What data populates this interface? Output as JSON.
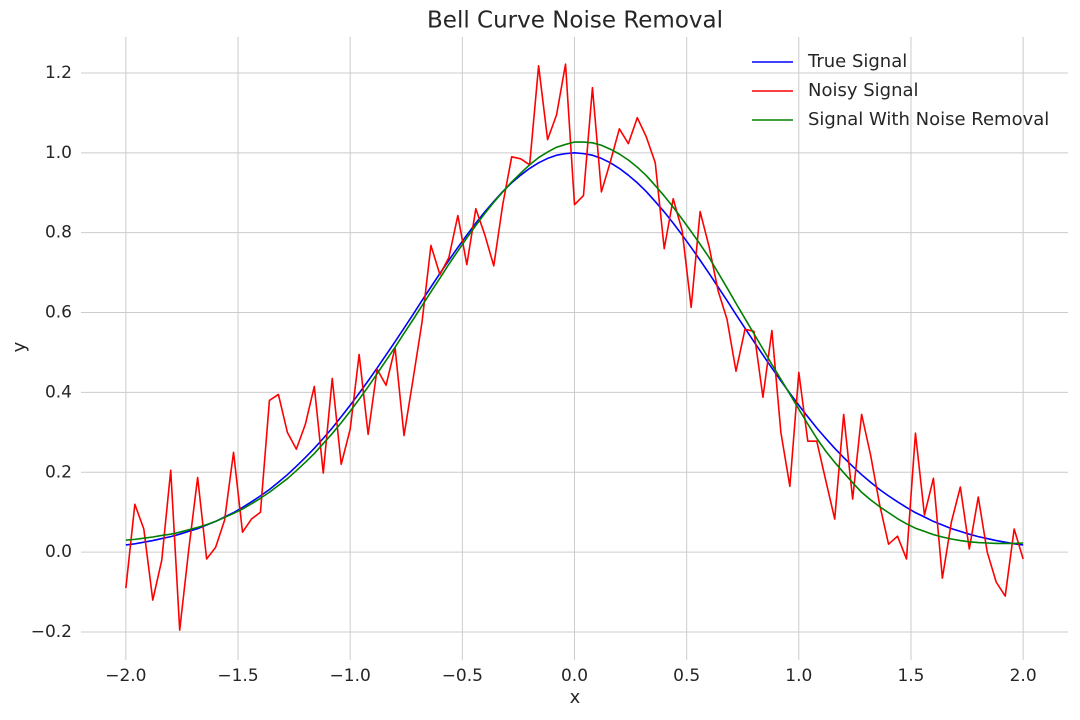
{
  "chart_data": {
    "type": "line",
    "title": "Bell Curve Noise Removal",
    "x_label": "x",
    "y_label": "y",
    "x": [
      -2,
      -1.96,
      -1.92,
      -1.88,
      -1.84,
      -1.8,
      -1.76,
      -1.72,
      -1.68,
      -1.64,
      -1.6,
      -1.56,
      -1.52,
      -1.48,
      -1.44,
      -1.4,
      -1.36,
      -1.32,
      -1.28,
      -1.24,
      -1.2,
      -1.16,
      -1.12,
      -1.08,
      -1.04,
      -1,
      -0.96,
      -0.92,
      -0.88,
      -0.84,
      -0.8,
      -0.76,
      -0.72,
      -0.68,
      -0.64,
      -0.6,
      -0.56,
      -0.52,
      -0.48,
      -0.44,
      -0.4,
      -0.36,
      -0.32,
      -0.28,
      -0.24,
      -0.2,
      -0.16,
      -0.12,
      -0.08,
      -0.04,
      0,
      0.04,
      0.08,
      0.12,
      0.16,
      0.2,
      0.24,
      0.28,
      0.32,
      0.36,
      0.4,
      0.44,
      0.48,
      0.52,
      0.56,
      0.6,
      0.64,
      0.68,
      0.72,
      0.76,
      0.8,
      0.84,
      0.88,
      0.92,
      0.96,
      1,
      1.04,
      1.08,
      1.12,
      1.16,
      1.2,
      1.24,
      1.28,
      1.32,
      1.36,
      1.4,
      1.44,
      1.48,
      1.52,
      1.56,
      1.6,
      1.64,
      1.68,
      1.72,
      1.76,
      1.8,
      1.84,
      1.88,
      1.92,
      1.96,
      2
    ],
    "series": [
      {
        "name": "True Signal",
        "color": "#0000ff",
        "values": [
          0.018,
          0.021,
          0.025,
          0.029,
          0.034,
          0.039,
          0.045,
          0.052,
          0.059,
          0.068,
          0.077,
          0.088,
          0.099,
          0.112,
          0.126,
          0.141,
          0.157,
          0.175,
          0.194,
          0.215,
          0.237,
          0.26,
          0.285,
          0.311,
          0.339,
          0.368,
          0.398,
          0.429,
          0.461,
          0.494,
          0.527,
          0.561,
          0.595,
          0.63,
          0.664,
          0.698,
          0.731,
          0.763,
          0.794,
          0.824,
          0.852,
          0.878,
          0.903,
          0.925,
          0.944,
          0.961,
          0.975,
          0.986,
          0.994,
          0.998,
          1,
          0.998,
          0.994,
          0.986,
          0.975,
          0.961,
          0.944,
          0.925,
          0.903,
          0.878,
          0.852,
          0.824,
          0.794,
          0.763,
          0.731,
          0.698,
          0.664,
          0.63,
          0.595,
          0.561,
          0.527,
          0.494,
          0.461,
          0.429,
          0.398,
          0.368,
          0.339,
          0.311,
          0.285,
          0.26,
          0.237,
          0.215,
          0.194,
          0.175,
          0.157,
          0.141,
          0.126,
          0.112,
          0.099,
          0.088,
          0.077,
          0.068,
          0.059,
          0.052,
          0.045,
          0.039,
          0.034,
          0.029,
          0.025,
          0.021,
          0.018
        ]
      },
      {
        "name": "Noisy Signal",
        "color": "#ff0000",
        "values": [
          -0.09,
          0.12,
          0.058,
          -0.12,
          -0.02,
          0.205,
          -0.195,
          0.005,
          0.187,
          -0.017,
          0.012,
          0.08,
          0.25,
          0.05,
          0.083,
          0.1,
          0.38,
          0.395,
          0.3,
          0.258,
          0.32,
          0.415,
          0.198,
          0.435,
          0.22,
          0.308,
          0.495,
          0.295,
          0.458,
          0.418,
          0.512,
          0.292,
          0.432,
          0.575,
          0.768,
          0.695,
          0.738,
          0.843,
          0.72,
          0.86,
          0.795,
          0.717,
          0.87,
          0.99,
          0.985,
          0.97,
          1.218,
          1.033,
          1.095,
          1.222,
          0.87,
          0.893,
          1.163,
          0.902,
          0.978,
          1.06,
          1.023,
          1.088,
          1.04,
          0.975,
          0.76,
          0.885,
          0.805,
          0.613,
          0.853,
          0.765,
          0.655,
          0.583,
          0.453,
          0.558,
          0.553,
          0.388,
          0.555,
          0.3,
          0.165,
          0.45,
          0.278,
          0.278,
          0.18,
          0.083,
          0.345,
          0.133,
          0.345,
          0.243,
          0.12,
          0.02,
          0.04,
          -0.017,
          0.298,
          0.093,
          0.185,
          -0.065,
          0.075,
          0.163,
          0.008,
          0.138,
          0.0,
          -0.075,
          -0.11,
          0.058,
          -0.017
        ]
      },
      {
        "name": "Signal With Noise Removal",
        "color": "#008000",
        "values": [
          0.03,
          0.032,
          0.035,
          0.038,
          0.042,
          0.045,
          0.05,
          0.056,
          0.062,
          0.069,
          0.077,
          0.087,
          0.097,
          0.108,
          0.121,
          0.135,
          0.15,
          0.167,
          0.184,
          0.204,
          0.225,
          0.247,
          0.272,
          0.297,
          0.324,
          0.353,
          0.383,
          0.414,
          0.447,
          0.48,
          0.513,
          0.548,
          0.582,
          0.617,
          0.652,
          0.686,
          0.721,
          0.754,
          0.787,
          0.818,
          0.848,
          0.876,
          0.902,
          0.927,
          0.949,
          0.97,
          0.988,
          1.002,
          1.014,
          1.021,
          1.027,
          1.027,
          1.025,
          1.019,
          1.009,
          0.997,
          0.982,
          0.964,
          0.943,
          0.918,
          0.892,
          0.864,
          0.834,
          0.803,
          0.771,
          0.738,
          0.7,
          0.662,
          0.623,
          0.585,
          0.547,
          0.509,
          0.47,
          0.433,
          0.396,
          0.358,
          0.321,
          0.285,
          0.253,
          0.225,
          0.199,
          0.174,
          0.15,
          0.131,
          0.114,
          0.099,
          0.084,
          0.071,
          0.06,
          0.052,
          0.044,
          0.038,
          0.033,
          0.029,
          0.026,
          0.024,
          0.023,
          0.022,
          0.022,
          0.022,
          0.023
        ]
      }
    ],
    "xlim": [
      -2.2,
      2.2
    ],
    "ylim": [
      -0.27,
      1.29
    ],
    "xticks": [
      {
        "value": -2,
        "label": "−2.0"
      },
      {
        "value": -1.5,
        "label": "−1.5"
      },
      {
        "value": -1,
        "label": "−1.0"
      },
      {
        "value": -0.5,
        "label": "−0.5"
      },
      {
        "value": 0,
        "label": "0.0"
      },
      {
        "value": 0.5,
        "label": "0.5"
      },
      {
        "value": 1,
        "label": "1.0"
      },
      {
        "value": 1.5,
        "label": "1.5"
      },
      {
        "value": 2,
        "label": "2.0"
      }
    ],
    "yticks": [
      {
        "value": -0.2,
        "label": "−0.2"
      },
      {
        "value": 0,
        "label": "0.0"
      },
      {
        "value": 0.2,
        "label": "0.2"
      },
      {
        "value": 0.4,
        "label": "0.4"
      },
      {
        "value": 0.6,
        "label": "0.6"
      },
      {
        "value": 0.8,
        "label": "0.8"
      },
      {
        "value": 1,
        "label": "1.0"
      },
      {
        "value": 1.2,
        "label": "1.2"
      }
    ],
    "grid": true,
    "legend": "upper right"
  }
}
